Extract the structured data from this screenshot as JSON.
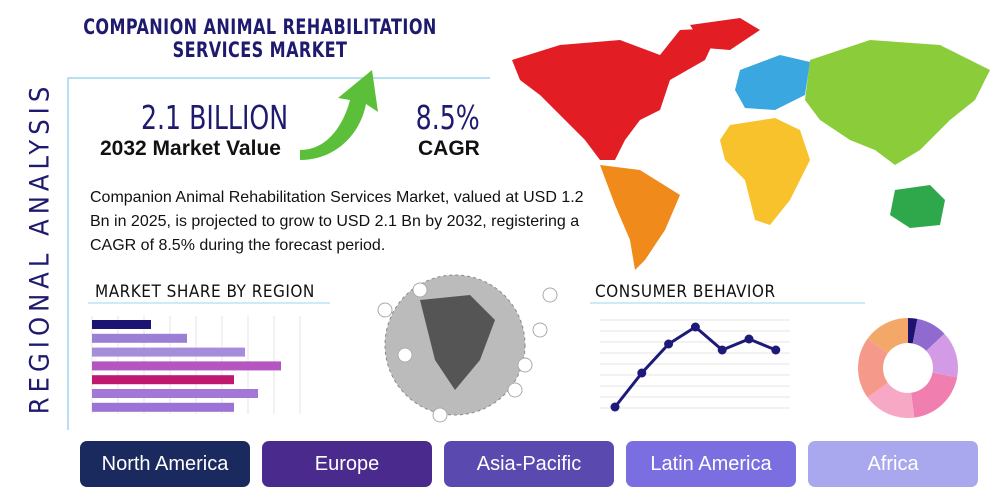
{
  "header": {
    "title": "COMPANION ANIMAL REHABILITATION SERVICES MARKET",
    "side_label": "REGIONAL ANALYSIS"
  },
  "stats": [
    {
      "value": "2.1 BILLION",
      "label": "2032 Market Value"
    },
    {
      "value": "8.5%",
      "label": "CAGR"
    }
  ],
  "description": "Companion Animal Rehabilitation Services Market, valued at USD 1.2 Bn in 2025, is projected to grow to USD 2.1 Bn by 2032, registering a CAGR of 8.5% during the forecast period.",
  "market_share": {
    "title": "MARKET SHARE BY REGION",
    "type": "bar",
    "values": [
      59,
      95,
      153,
      189,
      142,
      166,
      142
    ],
    "colors": [
      "#1c1470",
      "#9a7fd4",
      "#a58ddc",
      "#b455c0",
      "#c0176f",
      "#a377d6",
      "#9c72d4"
    ]
  },
  "consumer_behavior": {
    "title": "CONSUMER BEHAVIOR",
    "line": {
      "type": "line",
      "values": [
        3,
        37,
        66,
        83,
        60,
        71,
        60
      ],
      "color": "#1d1a7a"
    },
    "donut": {
      "type": "pie",
      "values": [
        3,
        10,
        15,
        20,
        17,
        20,
        15
      ],
      "colors": [
        "#1c1470",
        "#8f6bd0",
        "#d39be6",
        "#f07fb0",
        "#f7a8c4",
        "#f59a8a",
        "#f3a86a"
      ]
    }
  },
  "regions": [
    "North America",
    "Europe",
    "Asia-Pacific",
    "Latin America",
    "Africa"
  ]
}
